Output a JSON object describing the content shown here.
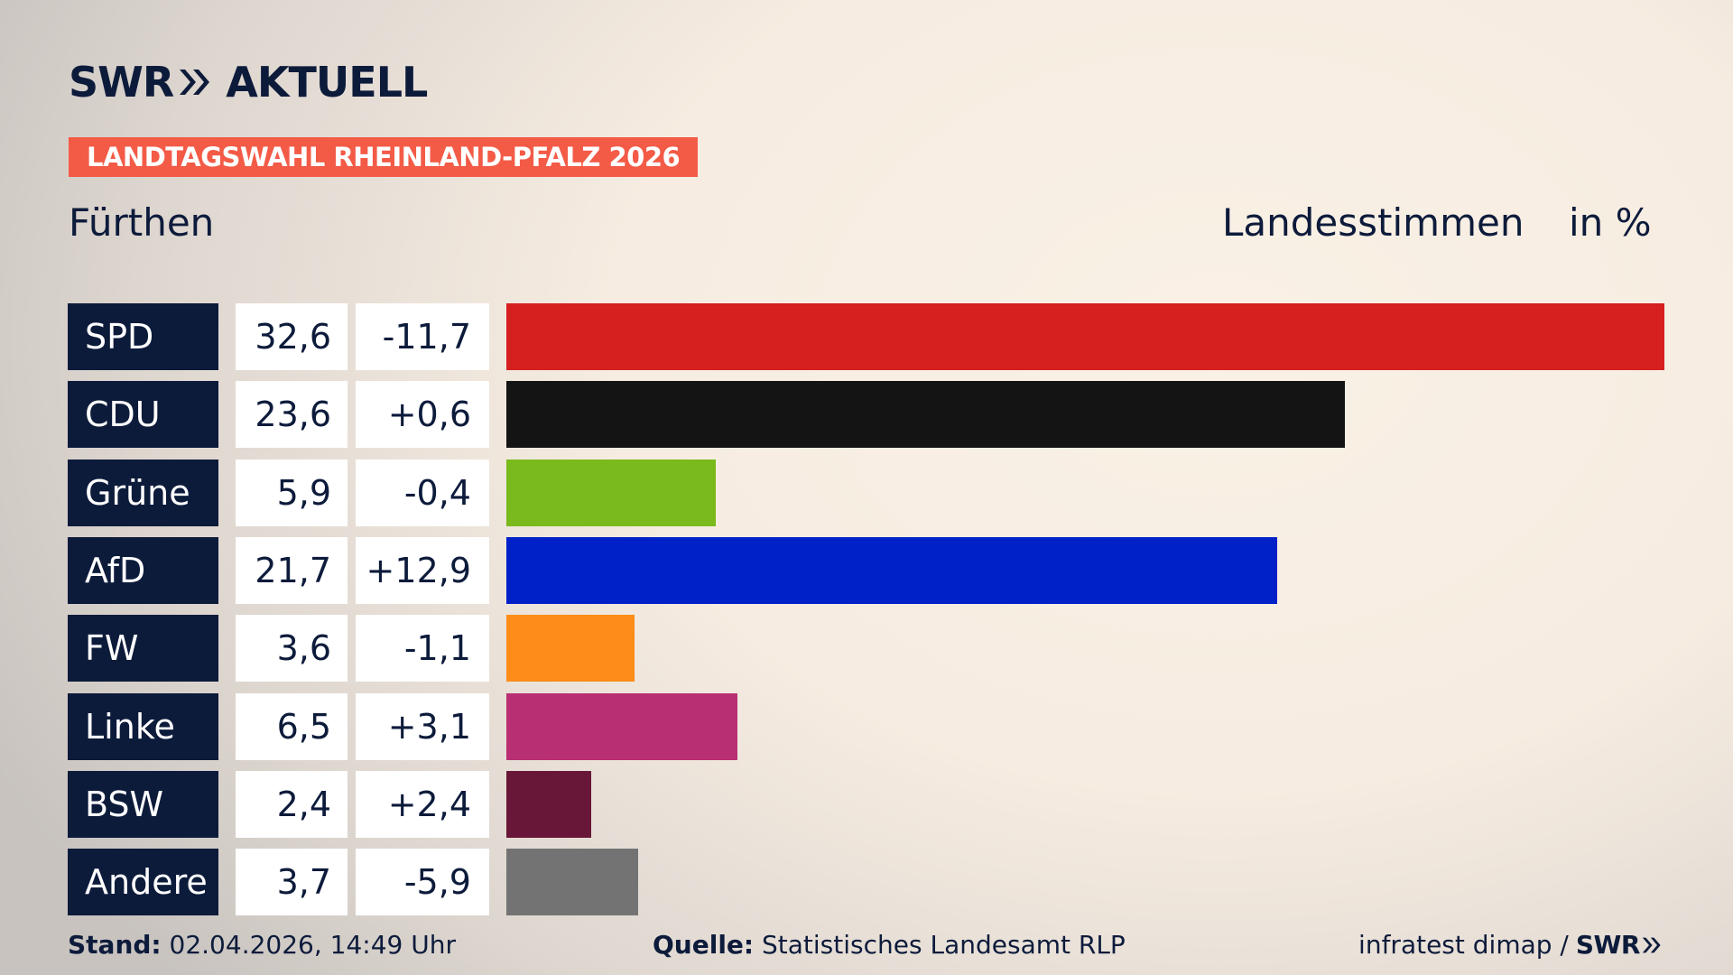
{
  "brand": {
    "logo_left": "SWR",
    "logo_right": "AKTUELL",
    "accent_color": "#f35b47",
    "navy_color": "#0d1b3b"
  },
  "kicker": "LANDTAGSWAHL RHEINLAND-PFALZ 2026",
  "location": "Fürthen",
  "measure": "Landesstimmen",
  "unit": "in %",
  "chart_data": {
    "type": "bar",
    "orientation": "horizontal",
    "categories": [
      "SPD",
      "CDU",
      "Grüne",
      "AfD",
      "FW",
      "Linke",
      "BSW",
      "Andere"
    ],
    "values": [
      32.6,
      23.6,
      5.9,
      21.7,
      3.6,
      6.5,
      2.4,
      3.7
    ],
    "values_label": [
      "32,6",
      "23,6",
      "5,9",
      "21,7",
      "3,6",
      "6,5",
      "2,4",
      "3,7"
    ],
    "diff_label": [
      "-11,7",
      "+0,6",
      "-0,4",
      "+12,9",
      "-1,1",
      "+3,1",
      "+2,4",
      "-5,9"
    ],
    "colors": [
      "#d61f1f",
      "#141414",
      "#7aba1c",
      "#0020c8",
      "#fd8c18",
      "#b92f73",
      "#681738",
      "#737373"
    ],
    "xlim": [
      0,
      32.6
    ],
    "grid": false,
    "legend": "none"
  },
  "footer": {
    "stand_label": "Stand:",
    "stand_value": "02.04.2026, 14:49 Uhr",
    "source_label": "Quelle:",
    "source_value": "Statistisches Landesamt RLP",
    "credit": "infratest dimap /",
    "credit_brand": "SWR"
  }
}
